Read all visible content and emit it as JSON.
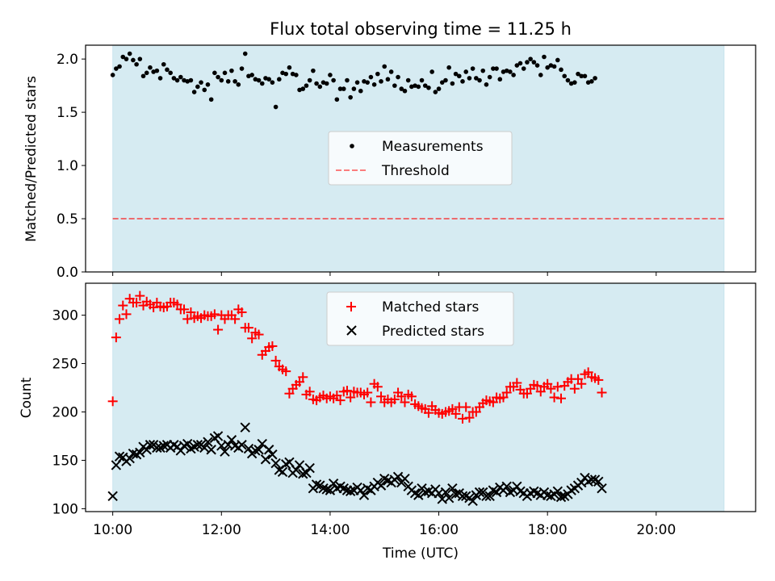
{
  "chart_data": {
    "title": "Flux total observing time = 11.25 h",
    "xlabel": "Time (UTC)",
    "x_ticks": [
      "10:00",
      "12:00",
      "14:00",
      "16:00",
      "18:00",
      "20:00"
    ],
    "x_range_hours": [
      9.5,
      21.83
    ],
    "shaded_span_hours": [
      10.0,
      21.25
    ],
    "colors": {
      "shade": "#add8e6",
      "threshold": "#ff0000",
      "matched": "#ff0000",
      "predicted": "#000000",
      "measure": "#000000"
    },
    "panels": [
      {
        "type": "scatter",
        "ylabel": "Matched/Predicted stars",
        "ylim": [
          0.0,
          2.13
        ],
        "y_ticks": [
          "0.0",
          "0.5",
          "1.0",
          "1.5",
          "2.0"
        ],
        "y_tick_values": [
          0.0,
          0.5,
          1.0,
          1.5,
          2.0
        ],
        "legend_position": "center",
        "threshold": 0.5,
        "legend": {
          "measurements": "Measurements",
          "threshold": "Threshold"
        },
        "series": [
          {
            "name": "Measurements",
            "x_start_hours": 10.0,
            "x_step_hours": 0.0625,
            "values": [
              1.85,
              1.91,
              1.93,
              2.02,
              2.0,
              2.05,
              1.99,
              1.95,
              2.0,
              1.84,
              1.87,
              1.92,
              1.88,
              1.89,
              1.82,
              1.95,
              1.9,
              1.87,
              1.82,
              1.8,
              1.83,
              1.8,
              1.79,
              1.8,
              1.69,
              1.74,
              1.78,
              1.71,
              1.76,
              1.62,
              1.87,
              1.83,
              1.8,
              1.87,
              1.79,
              1.89,
              1.79,
              1.76,
              1.91,
              2.05,
              1.84,
              1.85,
              1.81,
              1.8,
              1.77,
              1.82,
              1.81,
              1.78,
              1.55,
              1.81,
              1.87,
              1.86,
              1.92,
              1.86,
              1.85,
              1.71,
              1.72,
              1.75,
              1.8,
              1.89,
              1.77,
              1.74,
              1.78,
              1.77,
              1.85,
              1.8,
              1.62,
              1.72,
              1.72,
              1.8,
              1.64,
              1.72,
              1.78,
              1.7,
              1.79,
              1.78,
              1.83,
              1.76,
              1.86,
              1.79,
              1.93,
              1.81,
              1.88,
              1.75,
              1.83,
              1.72,
              1.7,
              1.8,
              1.74,
              1.75,
              1.74,
              1.8,
              1.75,
              1.73,
              1.88,
              1.69,
              1.72,
              1.78,
              1.8,
              1.92,
              1.77,
              1.86,
              1.84,
              1.79,
              1.88,
              1.82,
              1.91,
              1.82,
              1.8,
              1.89,
              1.76,
              1.83,
              1.91,
              1.91,
              1.81,
              1.88,
              1.89,
              1.88,
              1.85,
              1.94,
              1.96,
              1.91,
              1.97,
              2.0,
              1.97,
              1.94,
              1.85,
              2.02,
              1.92,
              1.94,
              1.93,
              1.99,
              1.9,
              1.84,
              1.8,
              1.77,
              1.78,
              1.86,
              1.84,
              1.84,
              1.78,
              1.79,
              1.82
            ]
          }
        ]
      },
      {
        "type": "scatter",
        "ylabel": "Count",
        "ylim": [
          97,
          333
        ],
        "y_ticks": [
          "100",
          "150",
          "200",
          "250",
          "300"
        ],
        "y_tick_values": [
          100,
          150,
          200,
          250,
          300
        ],
        "legend_position": "upper center",
        "legend": {
          "matched": "Matched stars",
          "predicted": "Predicted stars"
        },
        "series": [
          {
            "name": "Matched stars",
            "x_start_hours": 10.0,
            "x_step_hours": 0.0625,
            "values": [
              211,
              277,
              296,
              310,
              301,
              317,
              313,
              313,
              320,
              310,
              314,
              311,
              308,
              313,
              309,
              308,
              309,
              313,
              313,
              311,
              306,
              306,
              296,
              303,
              297,
              299,
              297,
              300,
              299,
              299,
              301,
              285,
              300,
              296,
              300,
              300,
              296,
              306,
              303,
              287,
              287,
              276,
              282,
              280,
              259,
              263,
              267,
              268,
              253,
              247,
              244,
              242,
              219,
              224,
              228,
              231,
              236,
              218,
              221,
              213,
              212,
              215,
              217,
              214,
              216,
              214,
              217,
              212,
              221,
              222,
              215,
              221,
              220,
              220,
              218,
              220,
              210,
              229,
              226,
              216,
              210,
              213,
              210,
              213,
              220,
              216,
              210,
              218,
              216,
              208,
              206,
              204,
              203,
              199,
              206,
              202,
              199,
              198,
              200,
              201,
              203,
              198,
              205,
              193,
              205,
              194,
              200,
              200,
              205,
              209,
              212,
              211,
              210,
              215,
              214,
              215,
              220,
              226,
              226,
              230,
              223,
              219,
              219,
              224,
              228,
              227,
              221,
              226,
              229,
              224,
              215,
              226,
              214,
              227,
              231,
              234,
              224,
              234,
              229,
              239,
              241,
              236,
              235,
              233,
              220
            ]
          },
          {
            "name": "Predicted stars",
            "x_start_hours": 10.0,
            "x_step_hours": 0.0625,
            "values": [
              113,
              145,
              154,
              153,
              149,
              152,
              157,
              156,
              158,
              164,
              161,
              166,
              166,
              163,
              163,
              165,
              166,
              163,
              166,
              164,
              160,
              165,
              167,
              162,
              164,
              166,
              166,
              163,
              169,
              161,
              173,
              175,
              165,
              159,
              166,
              171,
              165,
              163,
              166,
              184,
              162,
              157,
              160,
              161,
              167,
              151,
              161,
              156,
              147,
              140,
              138,
              146,
              148,
              137,
              140,
              145,
              136,
              137,
              142,
              121,
              125,
              124,
              121,
              120,
              119,
              126,
              121,
              123,
              121,
              119,
              118,
              119,
              122,
              119,
              114,
              121,
              119,
              123,
              127,
              124,
              131,
              129,
              127,
              130,
              133,
              127,
              131,
              123,
              119,
              116,
              114,
              121,
              117,
              118,
              116,
              120,
              116,
              110,
              117,
              111,
              121,
              115,
              116,
              113,
              113,
              111,
              108,
              114,
              117,
              117,
              113,
              113,
              119,
              117,
              122,
              119,
              123,
              117,
              119,
              123,
              118,
              116,
              113,
              116,
              118,
              116,
              114,
              117,
              114,
              113,
              115,
              118,
              112,
              113,
              115,
              119,
              121,
              124,
              127,
              132,
              128,
              130,
              130,
              128,
              121
            ]
          }
        ]
      }
    ]
  }
}
